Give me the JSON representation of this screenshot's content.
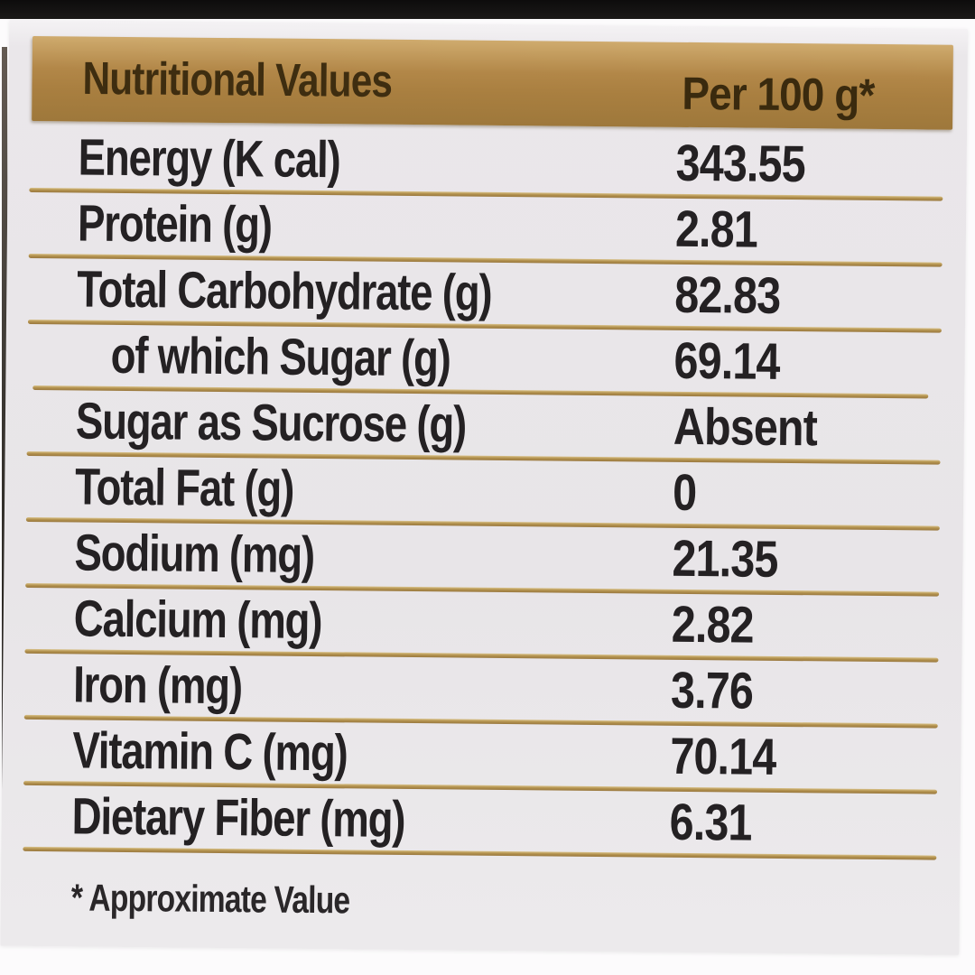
{
  "header": {
    "title": "Nutritional Values",
    "per_column": "Per 100 g*"
  },
  "table": {
    "rows": [
      {
        "label": "Energy (K cal)",
        "value": "343.55"
      },
      {
        "label": "Protein (g)",
        "value": "2.81"
      },
      {
        "label": "Total Carbohydrate (g)",
        "value": "82.83"
      },
      {
        "label": "of which Sugar (g)",
        "value": "69.14"
      },
      {
        "label": "Sugar as Sucrose (g)",
        "value": "Absent"
      },
      {
        "label": "Total Fat (g)",
        "value": "0"
      },
      {
        "label": "Sodium (mg)",
        "value": "21.35"
      },
      {
        "label": "Calcium (mg)",
        "value": "2.82"
      },
      {
        "label": "Iron (mg)",
        "value": "3.76"
      },
      {
        "label": "Vitamin C (mg)",
        "value": "70.14"
      },
      {
        "label": "Dietary Fiber (mg)",
        "value": "6.31"
      }
    ]
  },
  "footnote": "* Approximate Value",
  "colors": {
    "band_gold": "#a97f40",
    "band_gold_light": "#cfab6e",
    "band_text": "#3e2d10",
    "divider_gold": "#a5834a",
    "divider_highlight": "#d9c28a",
    "label_background": "#e8e5e8",
    "row_text": "#242123",
    "photo_top_edge": "#141313",
    "backdrop": "#fcfbfc"
  }
}
